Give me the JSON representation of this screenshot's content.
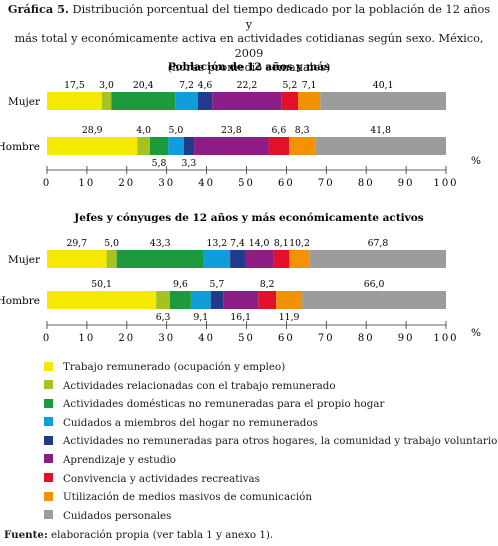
{
  "header": {
    "figure_label": "Gráfica 5.",
    "title_line1": "Distribución porcentual del tiempo dedicado por la población de 12 años y",
    "title_line2": "más total y económicamente activa en actividades cotidianas según sexo. México, 2009",
    "title_line3": "(horas promedio semanales)"
  },
  "legend": [
    {
      "label": "Trabajo remunerado (ocupación y empleo)",
      "color": "#f6e900"
    },
    {
      "label": "Actividades relacionadas con el trabajo remunerado",
      "color": "#a5c320"
    },
    {
      "label": "Actividades domésticas no remuneradas para el propio hogar",
      "color": "#1e9a3e"
    },
    {
      "label": "Cuidados a miembros del hogar no remunerados",
      "color": "#0f9ddc"
    },
    {
      "label": "Actividades no remuneradas para otros hogares, la comunidad y trabajo voluntario",
      "color": "#233a8c"
    },
    {
      "label": "Aprendizaje y estudio",
      "color": "#8c1d84"
    },
    {
      "label": "Convivencia y actividades recreativas",
      "color": "#e2102a"
    },
    {
      "label": "Utilización de medios masivos de comunicación",
      "color": "#f39200"
    },
    {
      "label": "Cuidados personales",
      "color": "#9d9c9c"
    }
  ],
  "source": {
    "label": "Fuente:",
    "text": "elaboración propia (ver tabla 1 y anexo 1)."
  },
  "chart_data": [
    {
      "type": "bar",
      "orientation": "horizontal",
      "stacked": true,
      "title": "Población de 12 años y más",
      "xlabel": "%",
      "xlim": [
        0,
        100
      ],
      "x_ticks": [
        "0",
        "10",
        "20",
        "30",
        "40",
        "50",
        "60",
        "70",
        "80",
        "90",
        "100"
      ],
      "categories": [
        "Mujer",
        "Hombre"
      ],
      "series_colors": [
        "#f6e900",
        "#a5c320",
        "#1e9a3e",
        "#0f9ddc",
        "#233a8c",
        "#8c1d84",
        "#e2102a",
        "#f39200",
        "#9d9c9c"
      ],
      "bars": [
        {
          "label": "Mujer",
          "values": [
            17.5,
            3.0,
            20.4,
            7.2,
            4.6,
            22.2,
            5.2,
            7.1,
            40.1
          ],
          "value_labels": [
            "17,5",
            "3,0",
            "20,4",
            "7,2",
            "4,6",
            "22,2",
            "5,2",
            "7,1",
            "40,1"
          ],
          "label_positions": [
            "above",
            "above",
            "above",
            "above",
            "above",
            "above",
            "above",
            "above",
            "above"
          ]
        },
        {
          "label": "Hombre",
          "values": [
            28.9,
            4.0,
            5.8,
            5.0,
            3.3,
            23.8,
            6.6,
            8.3,
            41.8
          ],
          "value_labels": [
            "28,9",
            "4,0",
            "5,8",
            "5,0",
            "3,3",
            "23,8",
            "6,6",
            "8,3",
            "41,8"
          ],
          "label_positions": [
            "above",
            "above",
            "below",
            "above",
            "below",
            "above",
            "above",
            "above",
            "above"
          ]
        }
      ]
    },
    {
      "type": "bar",
      "orientation": "horizontal",
      "stacked": true,
      "title": "Jefes y cónyuges de 12 años y más económicamente activos",
      "xlabel": "%",
      "xlim": [
        0,
        100
      ],
      "x_ticks": [
        "0",
        "10",
        "20",
        "30",
        "40",
        "50",
        "60",
        "70",
        "80",
        "90",
        "100"
      ],
      "categories": [
        "Mujer",
        "Hombre"
      ],
      "series_colors": [
        "#f6e900",
        "#a5c320",
        "#1e9a3e",
        "#0f9ddc",
        "#233a8c",
        "#8c1d84",
        "#e2102a",
        "#f39200",
        "#9d9c9c"
      ],
      "bars": [
        {
          "label": "Mujer",
          "values": [
            29.7,
            5.0,
            43.3,
            13.2,
            7.4,
            14.0,
            8.1,
            10.2,
            67.8
          ],
          "value_labels": [
            "29,7",
            "5,0",
            "43,3",
            "13,2",
            "7,4",
            "14,0",
            "8,1",
            "10,2",
            "67,8"
          ],
          "label_positions": [
            "above",
            "above",
            "above",
            "above",
            "above",
            "above",
            "above",
            "above",
            "above"
          ]
        },
        {
          "label": "Hombre",
          "values": [
            50.1,
            6.3,
            9.6,
            9.1,
            5.7,
            16.1,
            8.2,
            11.9,
            66.0
          ],
          "value_labels": [
            "50,1",
            "6,3",
            "9,6",
            "9,1",
            "5,7",
            "16,1",
            "8,2",
            "11,9",
            "66,0"
          ],
          "label_positions": [
            "above",
            "below",
            "above",
            "below",
            "above",
            "below",
            "above",
            "below",
            "above"
          ]
        }
      ]
    }
  ]
}
